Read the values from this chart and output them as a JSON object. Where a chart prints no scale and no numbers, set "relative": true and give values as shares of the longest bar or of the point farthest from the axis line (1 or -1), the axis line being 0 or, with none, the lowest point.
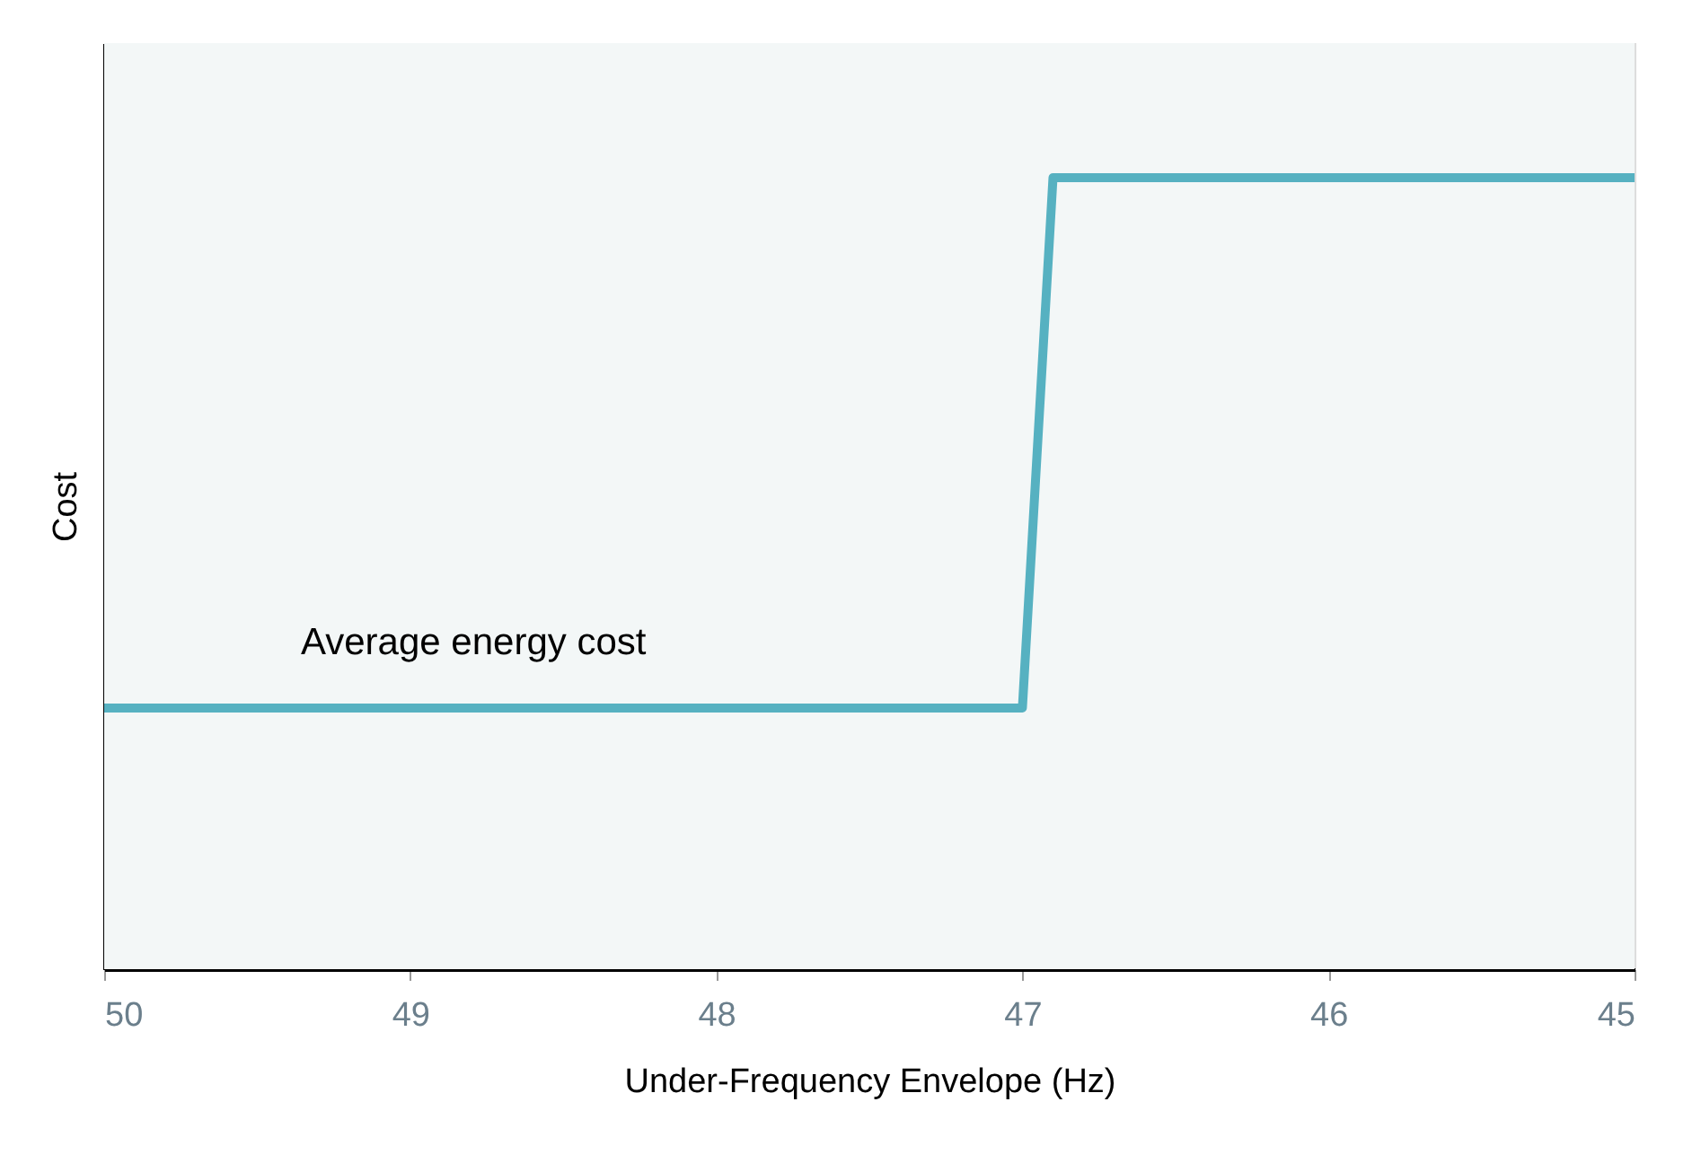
{
  "chart_data": {
    "type": "line",
    "xlabel": "Under-Frequency Envelope (Hz)",
    "ylabel": "Cost",
    "relative": true,
    "xlim": [
      50,
      45
    ],
    "xticks": [
      50,
      49,
      48,
      47,
      46,
      45
    ],
    "marker": "none",
    "line_style": "solid",
    "series": [
      {
        "name": "Average energy cost",
        "color": "#56b1c1",
        "x": [
          50,
          47,
          46.9,
          45
        ],
        "values": [
          0.33,
          0.33,
          1,
          1
        ]
      }
    ]
  }
}
